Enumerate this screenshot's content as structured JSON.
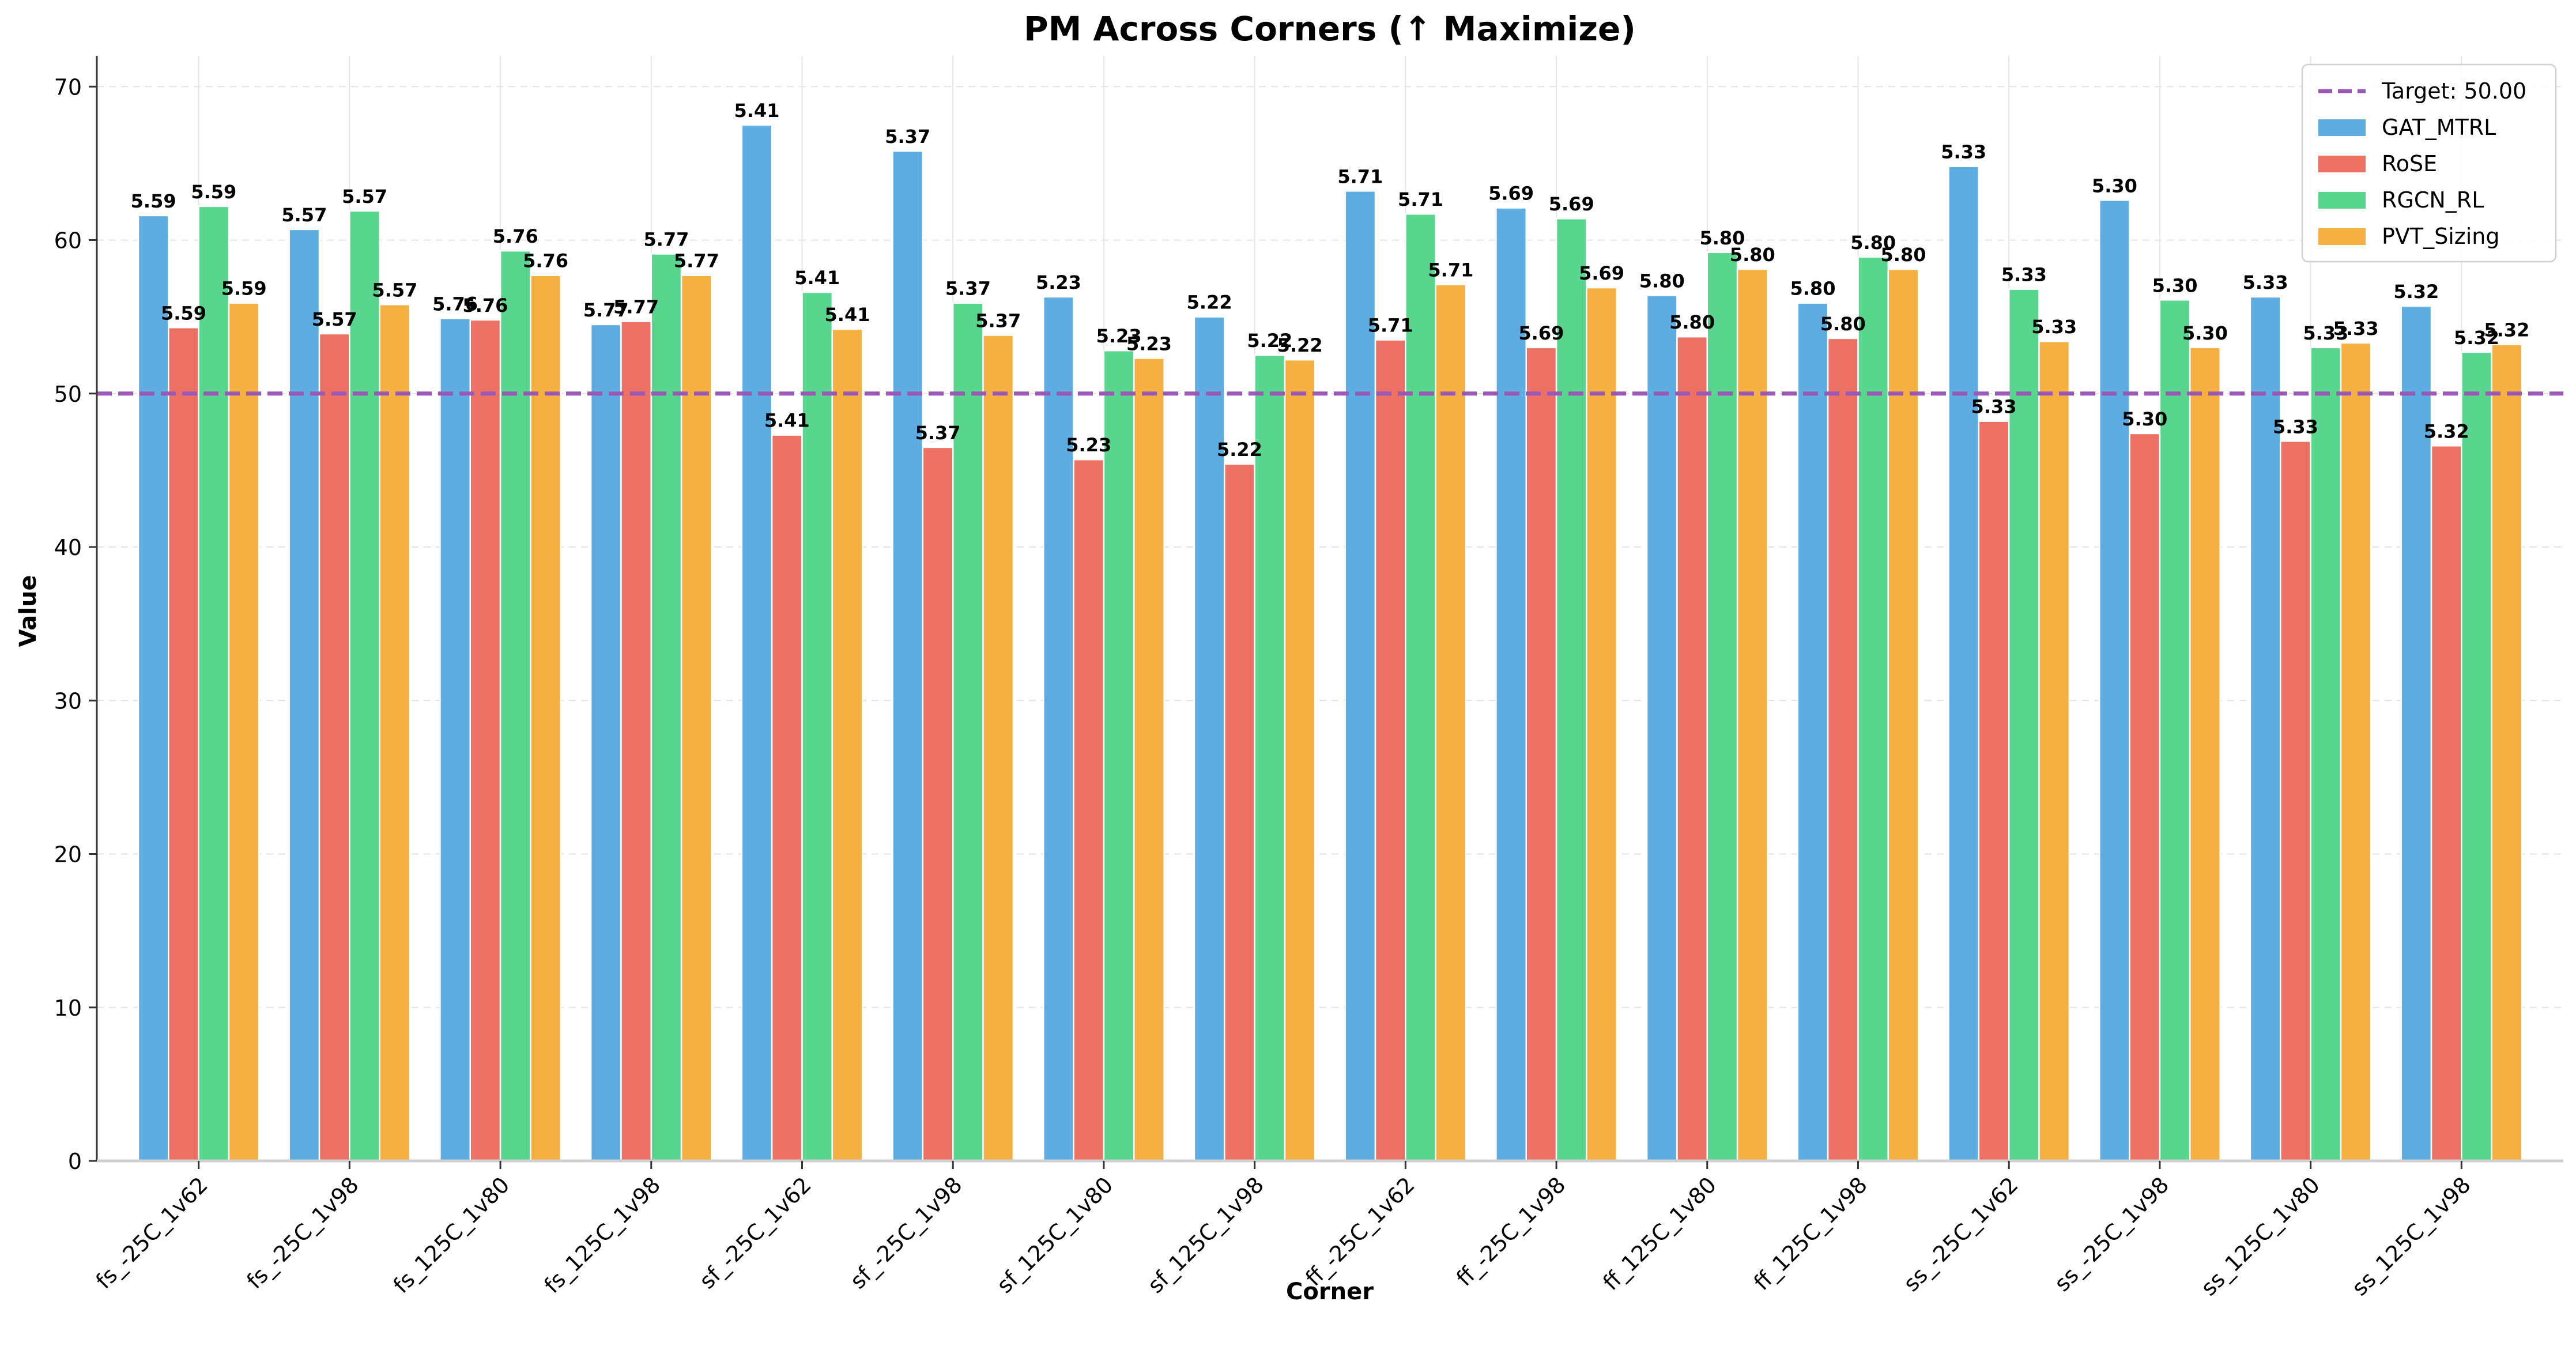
{
  "chart_data": {
    "type": "bar",
    "title": "PM Across Corners (↑ Maximize)",
    "xlabel": "Corner",
    "ylabel": "Value",
    "ylim": [
      0,
      72
    ],
    "yticks": [
      0,
      10,
      20,
      30,
      40,
      50,
      60,
      70
    ],
    "grid": true,
    "legend_position": "top-right",
    "categories": [
      "fs_-25C_1v62",
      "fs_-25C_1v98",
      "fs_125C_1v80",
      "fs_125C_1v98",
      "sf_-25C_1v62",
      "sf_-25C_1v98",
      "sf_125C_1v80",
      "sf_125C_1v98",
      "ff_-25C_1v62",
      "ff_-25C_1v98",
      "ff_125C_1v80",
      "ff_125C_1v98",
      "ss_-25C_1v62",
      "ss_-25C_1v98",
      "ss_125C_1v80",
      "ss_125C_1v98"
    ],
    "series": [
      {
        "name": "GAT_MTRL",
        "color": "#5DADE2",
        "values": [
          61.6,
          60.7,
          54.9,
          54.5,
          67.5,
          65.8,
          56.3,
          55.0,
          63.2,
          62.1,
          56.4,
          55.9,
          64.8,
          62.6,
          56.3,
          55.7
        ],
        "labels": [
          "5.59",
          "5.57",
          "5.76",
          "5.77",
          "5.41",
          "5.37",
          "5.23",
          "5.22",
          "5.71",
          "5.69",
          "5.80",
          "5.80",
          "5.33",
          "5.30",
          "5.33",
          "5.32"
        ]
      },
      {
        "name": "RoSE",
        "color": "#EC7063",
        "values": [
          54.3,
          53.9,
          54.8,
          54.7,
          47.3,
          46.5,
          45.7,
          45.4,
          53.5,
          53.0,
          53.7,
          53.6,
          48.2,
          47.4,
          46.9,
          46.6
        ],
        "labels": [
          "5.59",
          "5.57",
          "5.76",
          "5.77",
          "5.41",
          "5.37",
          "5.23",
          "5.22",
          "5.71",
          "5.69",
          "5.80",
          "5.80",
          "5.33",
          "5.30",
          "5.33",
          "5.32"
        ]
      },
      {
        "name": "RGCN_RL",
        "color": "#58D68D",
        "values": [
          62.2,
          61.9,
          59.3,
          59.1,
          56.6,
          55.9,
          52.8,
          52.5,
          61.7,
          61.4,
          59.2,
          58.9,
          56.8,
          56.1,
          53.0,
          52.7
        ],
        "labels": [
          "5.59",
          "5.57",
          "5.76",
          "5.77",
          "5.41",
          "5.37",
          "5.23",
          "5.22",
          "5.71",
          "5.69",
          "5.80",
          "5.80",
          "5.33",
          "5.30",
          "5.33",
          "5.32"
        ]
      },
      {
        "name": "PVT_Sizing",
        "color": "#F5B041",
        "values": [
          55.9,
          55.8,
          57.7,
          57.7,
          54.2,
          53.8,
          52.3,
          52.2,
          57.1,
          56.9,
          58.1,
          58.1,
          53.4,
          53.0,
          53.3,
          53.2
        ],
        "labels": [
          "5.59",
          "5.57",
          "5.76",
          "5.77",
          "5.41",
          "5.37",
          "5.23",
          "5.22",
          "5.71",
          "5.69",
          "5.80",
          "5.80",
          "5.33",
          "5.30",
          "5.33",
          "5.32"
        ]
      }
    ],
    "target": {
      "value": 50,
      "label": "Target: 50.00",
      "color": "#9B59B6"
    }
  }
}
